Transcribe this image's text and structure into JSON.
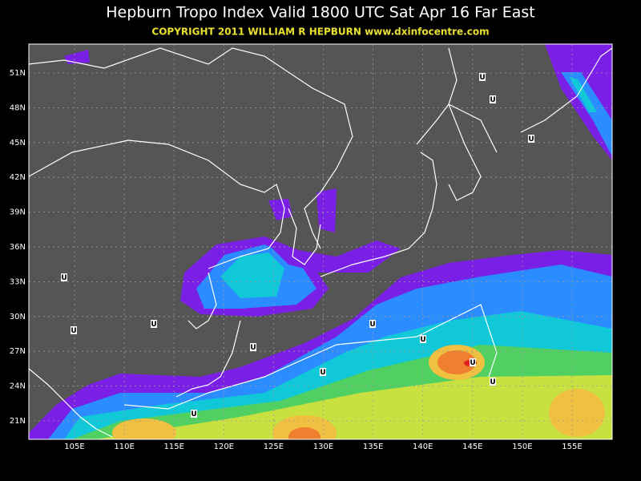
{
  "title": "Hepburn Tropo Index Valid 1800 UTC Sat Apr 16 Far East",
  "copyright": "COPYRIGHT 2011   WILLIAM R HEPBURN   www.dxinfocentre.com",
  "lat_labels": [
    "51N",
    "48N",
    "45N",
    "42N",
    "39N",
    "36N",
    "33N",
    "30N",
    "27N",
    "24N",
    "21N"
  ],
  "lon_labels": [
    "105E",
    "110E",
    "115E",
    "120E",
    "125E",
    "130E",
    "135E",
    "140E",
    "145E",
    "150E",
    "155E"
  ],
  "markers": [
    "U",
    "U",
    "U",
    "U",
    "U",
    "U",
    "U",
    "U",
    "U",
    "U",
    "U",
    "U",
    "U"
  ]
}
